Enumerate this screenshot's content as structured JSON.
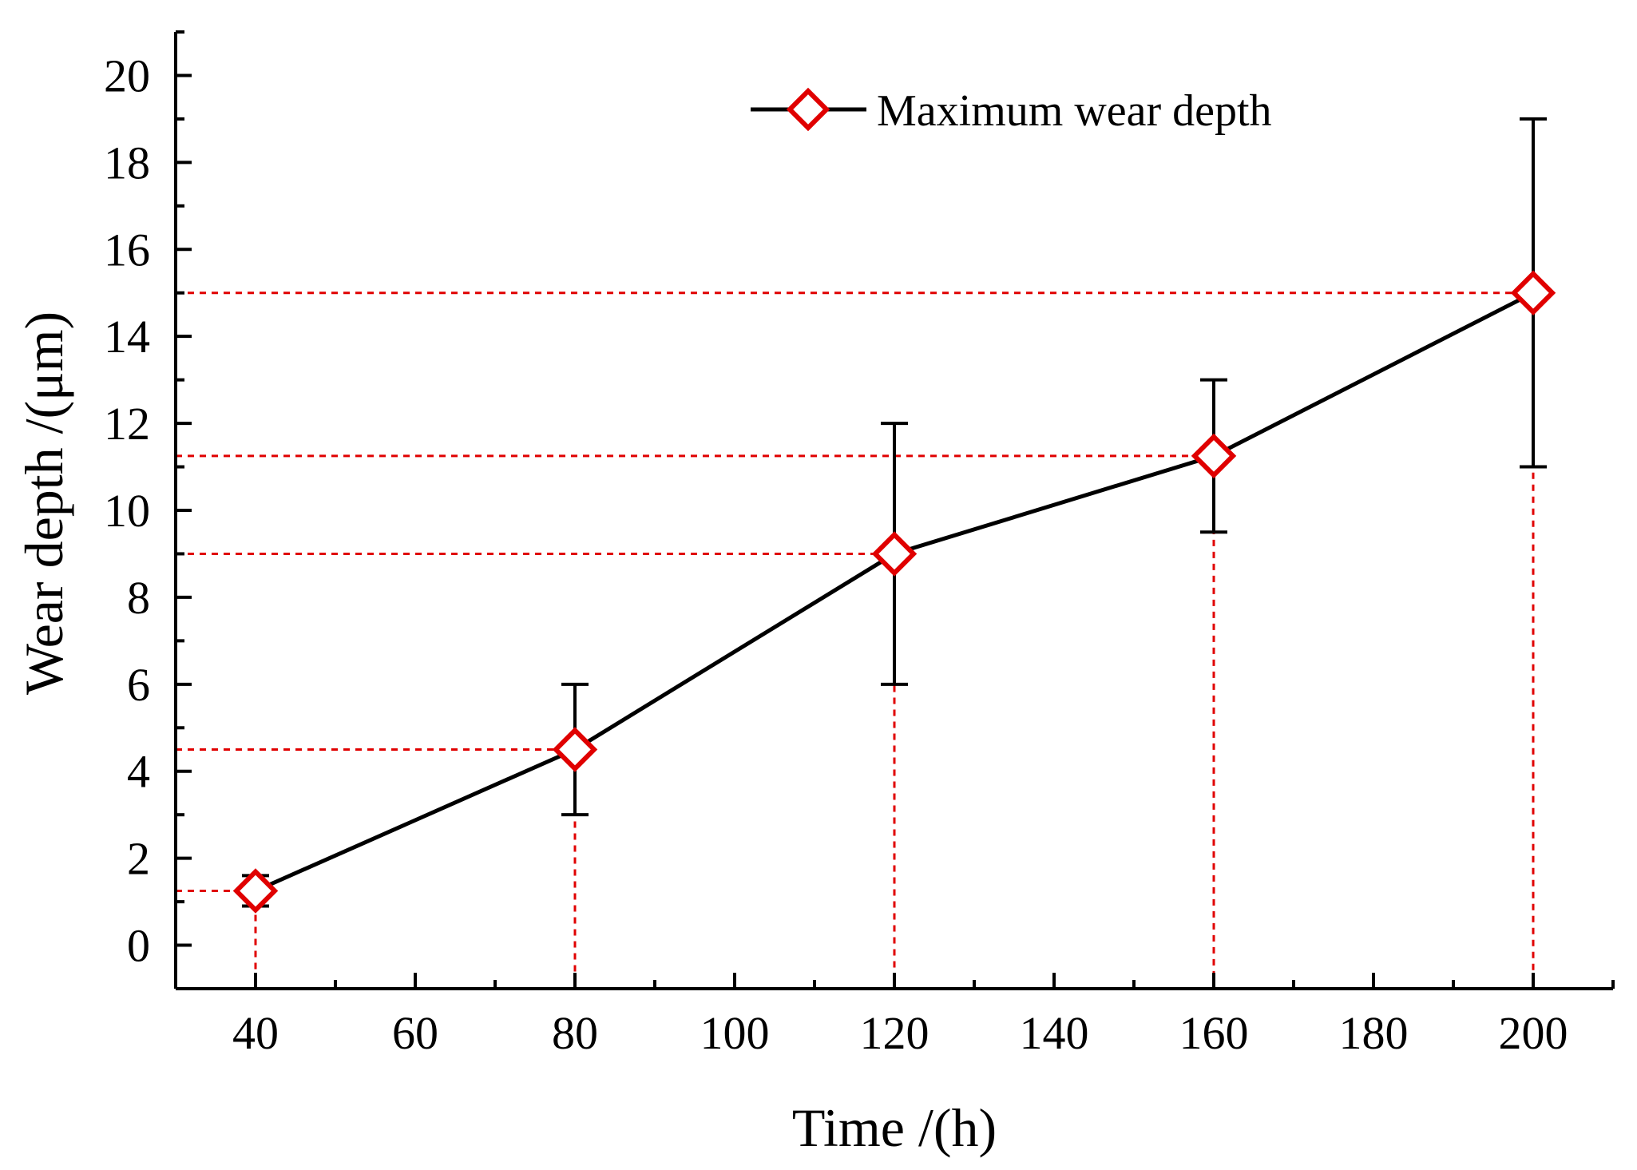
{
  "chart_data": {
    "type": "line",
    "xlabel": "Time /(h)",
    "ylabel": "Wear depth /(μm)",
    "xlim": [
      30,
      210
    ],
    "ylim": [
      -1,
      21
    ],
    "xticks": [
      40,
      60,
      80,
      100,
      120,
      140,
      160,
      180,
      200
    ],
    "yticks": [
      0,
      2,
      4,
      6,
      8,
      10,
      12,
      14,
      16,
      18,
      20
    ],
    "legend_position": "top-right",
    "series": [
      {
        "name": "Maximum wear depth",
        "line_color": "#000000",
        "marker": "diamond",
        "marker_color": "#e00000",
        "x": [
          40,
          80,
          120,
          160,
          200
        ],
        "y": [
          1.25,
          4.5,
          9.0,
          11.25,
          15.0
        ],
        "error_low": [
          0.9,
          3.0,
          6.0,
          9.5,
          11.0
        ],
        "error_high": [
          1.6,
          6.0,
          12.0,
          13.0,
          19.0
        ]
      }
    ],
    "guide_lines": {
      "style": "dotted",
      "color": "#e00000"
    }
  }
}
